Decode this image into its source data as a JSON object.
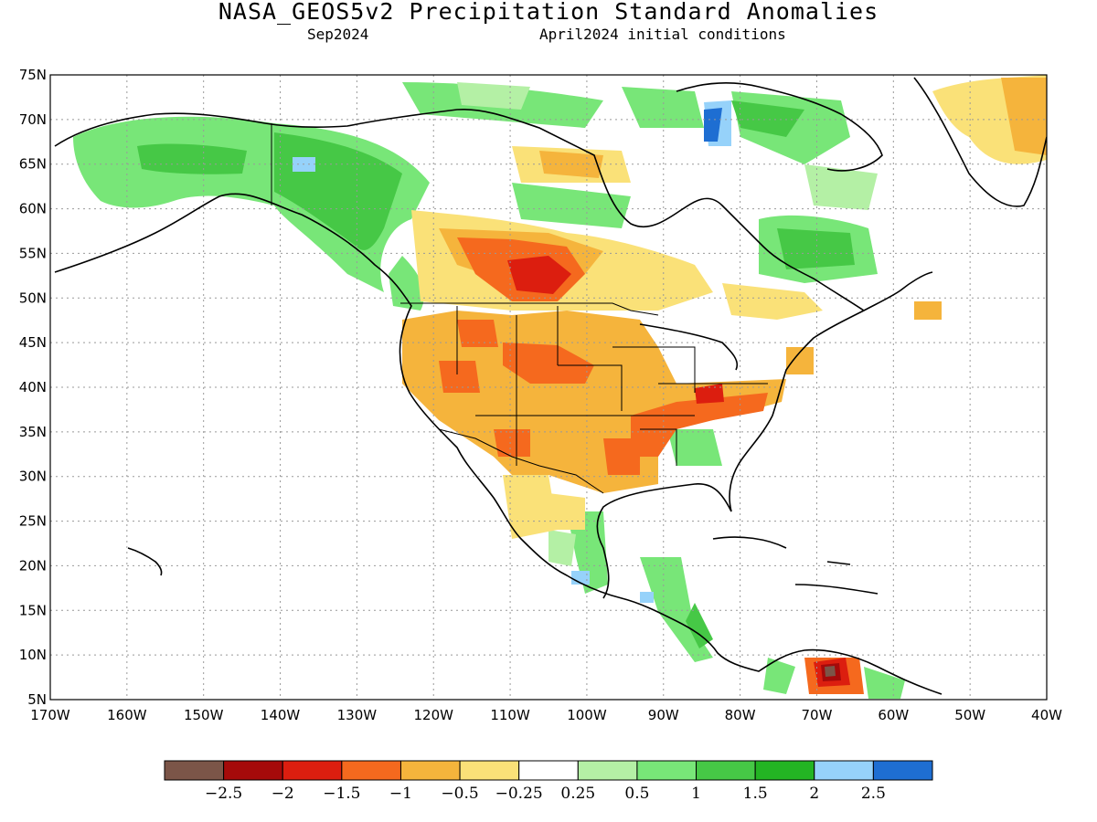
{
  "title": "NASA_GEOS5v2 Precipitation Standard Anomalies",
  "subtitle_left": "Sep2024",
  "subtitle_right": "April2024 initial conditions",
  "lat_ticks": [
    "75N",
    "70N",
    "65N",
    "60N",
    "55N",
    "50N",
    "45N",
    "40N",
    "35N",
    "30N",
    "25N",
    "20N",
    "15N",
    "10N",
    "5N"
  ],
  "lon_ticks": [
    "170W",
    "160W",
    "150W",
    "140W",
    "130W",
    "120W",
    "110W",
    "100W",
    "90W",
    "80W",
    "70W",
    "60W",
    "50W",
    "40W"
  ],
  "colorbar": {
    "colors": [
      "#7b5548",
      "#a50a0a",
      "#dc1e0f",
      "#f5691e",
      "#f5b43c",
      "#fae178",
      "#ffffff",
      "#b4f0a5",
      "#78e678",
      "#46c846",
      "#23b423",
      "#96d2fa",
      "#1e6ed2"
    ],
    "labels": [
      "−2.5",
      "−2",
      "−1.5",
      "−1",
      "−0.5",
      "−0.25",
      "0.25",
      "0.5",
      "1",
      "1.5",
      "2",
      "2.5"
    ]
  },
  "colors": {
    "coast": "#000000",
    "grid": "#999999"
  }
}
